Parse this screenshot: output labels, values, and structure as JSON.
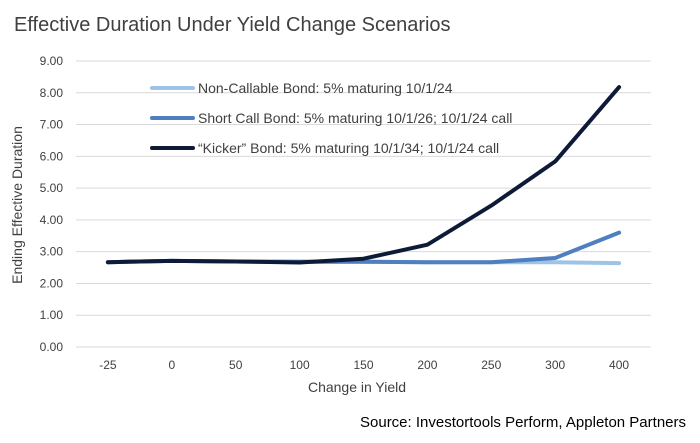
{
  "chart_data": {
    "type": "line",
    "title": "Effective Duration Under Yield Change Scenarios",
    "xlabel": "Change in Yield",
    "ylabel": "Ending Effective Duration",
    "categories": [
      "-25",
      "0",
      "50",
      "100",
      "150",
      "200",
      "250",
      "300",
      "400"
    ],
    "y_ticks": [
      "0.00",
      "1.00",
      "2.00",
      "3.00",
      "4.00",
      "5.00",
      "6.00",
      "7.00",
      "8.00",
      "9.00"
    ],
    "ylim": [
      0,
      9
    ],
    "grid": true,
    "legend_position": "top-left",
    "series": [
      {
        "name": "Non-Callable Bond: 5% maturing 10/1/24",
        "color": "#9dc3e6",
        "width": 4,
        "values": [
          2.67,
          2.71,
          2.69,
          2.68,
          2.68,
          2.67,
          2.67,
          2.67,
          2.64
        ]
      },
      {
        "name": "Short Call Bond: 5% maturing 10/1/26; 10/1/24 call",
        "color": "#4f7fc0",
        "width": 4,
        "values": [
          2.67,
          2.71,
          2.69,
          2.68,
          2.68,
          2.67,
          2.67,
          2.8,
          3.6
        ]
      },
      {
        "name": "“Kicker” Bond: 5% maturing 10/1/34; 10/1/24 call",
        "color": "#0d1b38",
        "width": 4,
        "values": [
          2.67,
          2.71,
          2.69,
          2.66,
          2.78,
          3.22,
          4.45,
          5.84,
          8.18
        ]
      }
    ]
  },
  "source": "Source: Investortools Perform, Appleton Partners"
}
